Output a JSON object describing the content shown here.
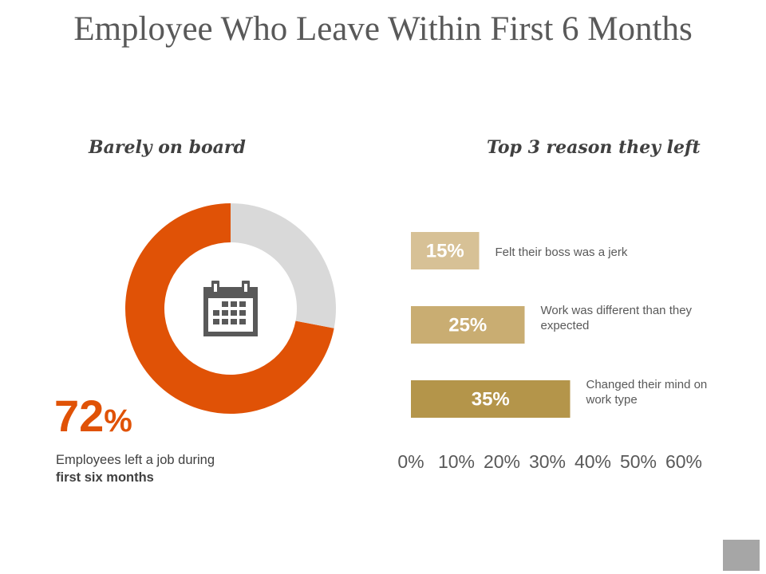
{
  "slide": {
    "title": "Employee Who Leave Within First 6 Months"
  },
  "left_panel": {
    "heading": "Barely on board",
    "percent_value": "72",
    "percent_sign": "%",
    "caption_line1": "Employees left a job during",
    "caption_line2": "first six months",
    "icon": "calendar-icon"
  },
  "right_panel": {
    "heading": "Top 3 reason they left"
  },
  "chart_data": [
    {
      "type": "pie",
      "variant": "donut",
      "title": "",
      "slices": [
        {
          "label": "",
          "value": 72,
          "color": "#e05206"
        },
        {
          "label": "",
          "value": 28,
          "color": "#d9d9d9"
        }
      ]
    },
    {
      "type": "bar",
      "orientation": "horizontal",
      "title": "",
      "categories": [
        "Felt their boss was a jerk",
        "Work was different than they expected",
        "Changed their mind on work type"
      ],
      "category_lines": [
        [
          "Felt their boss was a jerk"
        ],
        [
          "Work was different than they",
          "expected"
        ],
        [
          "Changed their mind on",
          "work type"
        ]
      ],
      "values": [
        15,
        25,
        35
      ],
      "value_labels": [
        "15%",
        "25%",
        "35%"
      ],
      "bar_colors": [
        "#d7c196",
        "#c9ad72",
        "#b4954a"
      ],
      "xlim": [
        0,
        60
      ],
      "x_ticks": [
        "0%",
        "10%",
        "20%",
        "30%",
        "40%",
        "50%",
        "60%"
      ],
      "grid": false,
      "legend": "none"
    }
  ]
}
